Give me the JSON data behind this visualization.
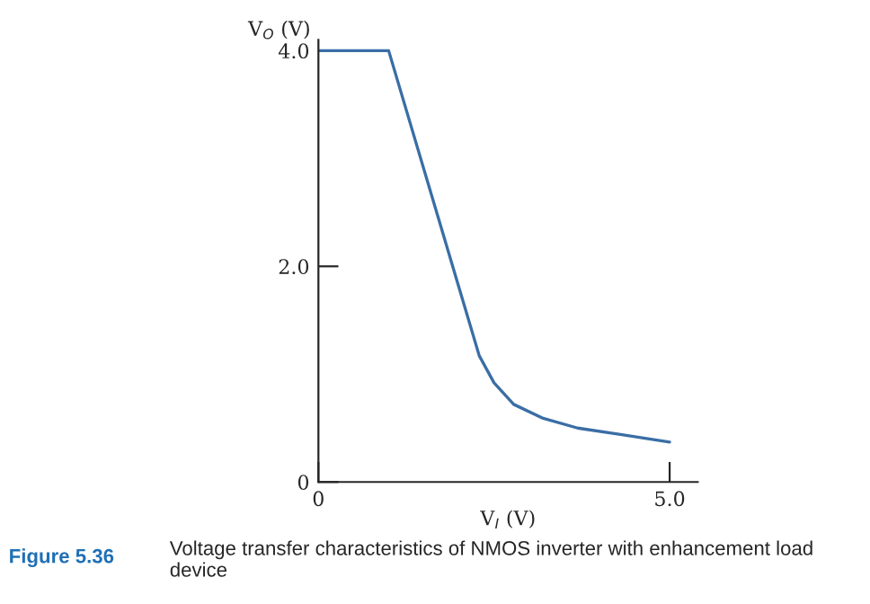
{
  "chart_data": {
    "type": "line",
    "x": [
      0,
      1.0,
      2.29,
      2.5,
      2.78,
      3.2,
      3.69,
      4.3,
      5.0
    ],
    "series": [
      {
        "color": "#3a6ea5",
        "values": [
          4.0,
          4.0,
          1.17,
          0.92,
          0.72,
          0.59,
          0.5,
          0.44,
          0.37
        ]
      }
    ],
    "xlim": [
      0,
      5.4
    ],
    "ylim": [
      0,
      4.1
    ],
    "xticks": [
      {
        "value": 0,
        "label": "0"
      },
      {
        "value": 5,
        "label": "5.0"
      }
    ],
    "yticks": [
      {
        "value": 0,
        "label": "0"
      },
      {
        "value": 2,
        "label": "2.0"
      },
      {
        "value": 4,
        "label": "4.0"
      }
    ],
    "xlabel": "V$_{I}$ (V)",
    "ylabel": "V$_{O}$ (V)",
    "grid": false,
    "legend": false,
    "annotations": [
      "Figure 5.36",
      "Voltage transfer characteristics of NMOS inverter with enhancement load device"
    ]
  }
}
